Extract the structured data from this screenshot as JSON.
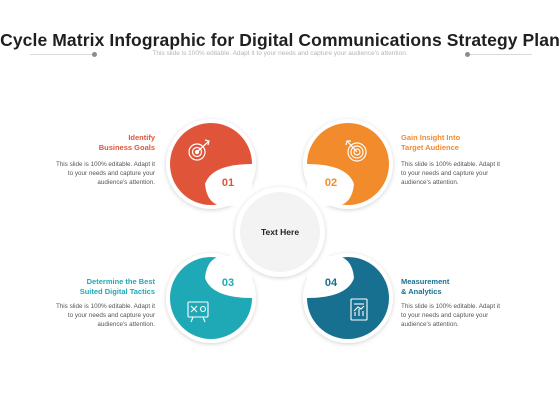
{
  "title": "Cycle Matrix Infographic for Digital Communications Strategy Plan",
  "subtitle": "This slide is 100% editable. Adapt it to your needs and capture your audience's attention.",
  "center": {
    "text": "Text Here"
  },
  "colors": {
    "red": "#e0553a",
    "orange": "#f28b2c",
    "teal": "#1fa9b7",
    "blue": "#17708f"
  },
  "steps": [
    {
      "number": "01",
      "label_line1": "Identify",
      "label_line2": "Business Goals",
      "desc_line1": "This slide is 100% editable. Adapt it",
      "desc_line2": "to your needs and capture your",
      "desc_line3": "audience's attention.",
      "icon": "target-arrow-icon"
    },
    {
      "number": "02",
      "label_line1": "Gain Insight Into",
      "label_line2": "Target Audience",
      "desc_line1": "This slide is 100% editable. Adapt it",
      "desc_line2": "to your needs and capture your",
      "desc_line3": "audience's attention.",
      "icon": "bullseye-icon"
    },
    {
      "number": "03",
      "label_line1": "Determine the Best",
      "label_line2": "Suited Digital Tactics",
      "desc_line1": "This slide is 100% editable. Adapt it",
      "desc_line2": "to your needs and capture your",
      "desc_line3": "audience's attention.",
      "icon": "strategy-board-icon"
    },
    {
      "number": "04",
      "label_line1": "Measurement",
      "label_line2": "& Analytics",
      "desc_line1": "This slide is 100% editable. Adapt it",
      "desc_line2": "to your needs and capture your",
      "desc_line3": "audience's attention.",
      "icon": "analytics-report-icon"
    }
  ]
}
